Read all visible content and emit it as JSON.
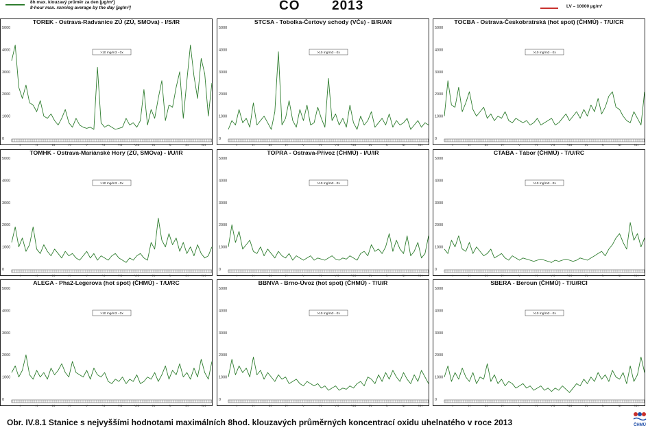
{
  "header": {
    "legend_series_line1": "8h max. klouzavý průměr za den [µg/m³]",
    "legend_series_line2": "8-hour max. running average by the day [µg/m³]",
    "gas": "CO",
    "year": "2013",
    "legend_limit": "LV – 10000 µg/m³",
    "series_color": "#2f7d2f",
    "limit_color": "#c8302c"
  },
  "caption": "Obr. IV.8.1  Stanice s nejvyššími hodnotami maximálních 8hod. klouzavých průměrných koncentrací oxidu uhelnatého v roce 2013",
  "logo_text": "ČHMÚ",
  "chart_data": [
    {
      "type": "line",
      "title": "TOREK - Ostrava-Radvanice ZÚ (ZÚ, SMOva) - I/S/IR",
      "annotation": ">10 mg/m3 - 0x",
      "ylim": [
        0,
        5000
      ],
      "yticks": [
        "0",
        "1000",
        "2000",
        "3000",
        "4000",
        "5000"
      ],
      "xticks": [
        "I",
        "II",
        "III",
        "IV",
        "V",
        "VI",
        "VII",
        "VIII",
        "IX",
        "X",
        "XI",
        "XII"
      ],
      "series": [
        {
          "values": [
            3500,
            4200,
            2300,
            1800,
            2400,
            1600,
            1500,
            1200,
            1700,
            1000,
            900,
            1100,
            800,
            600,
            900,
            1300,
            700,
            500,
            900,
            600,
            500,
            450,
            500,
            400,
            3200,
            700,
            500,
            600,
            500,
            400,
            450,
            500,
            900,
            600,
            700,
            500,
            800,
            2200,
            600,
            1300,
            900,
            1800,
            2600,
            800,
            1500,
            1400,
            2300,
            3000,
            900,
            2600,
            4200,
            2800,
            1800,
            3600,
            2900,
            1000,
            2500
          ]
        }
      ]
    },
    {
      "type": "line",
      "title": "STCSA - Tobolka-Čertovy schody (VČs) - B/R/AN",
      "annotation": ">10 mg/m3 - 0x",
      "ylim": [
        0,
        5000
      ],
      "yticks": [
        "0",
        "1000",
        "2000",
        "3000",
        "4000",
        "5000"
      ],
      "xticks": [
        "I",
        "II",
        "III",
        "IV",
        "V",
        "VI",
        "VII",
        "VIII",
        "IX",
        "X",
        "XI",
        "XII"
      ],
      "series": [
        {
          "values": [
            400,
            800,
            600,
            1300,
            700,
            900,
            500,
            1600,
            600,
            800,
            1000,
            700,
            400,
            1200,
            3900,
            600,
            900,
            1700,
            800,
            500,
            1300,
            800,
            1500,
            600,
            700,
            1400,
            900,
            500,
            2700,
            800,
            1100,
            600,
            900,
            500,
            1500,
            700,
            400,
            1000,
            600,
            800,
            1200,
            500,
            700,
            900,
            600,
            1100,
            500,
            800,
            600,
            700,
            900,
            400,
            600,
            800,
            500,
            700,
            600
          ]
        }
      ]
    },
    {
      "type": "line",
      "title": "TOCBA - Ostrava-Českobratrská (hot spot) (ČHMÚ) - T/U/CR",
      "annotation": ">10 mg/m3 - 0x",
      "ylim": [
        0,
        5000
      ],
      "yticks": [
        "0",
        "1000",
        "2000",
        "3000",
        "4000",
        "5000"
      ],
      "xticks": [
        "I",
        "II",
        "III",
        "IV",
        "V",
        "VI",
        "VII",
        "VIII",
        "IX",
        "X",
        "XI",
        "XII"
      ],
      "series": [
        {
          "values": [
            1000,
            2600,
            1500,
            1400,
            2300,
            1200,
            1600,
            2100,
            1300,
            1000,
            1200,
            1400,
            900,
            1100,
            800,
            1000,
            900,
            1200,
            800,
            700,
            900,
            800,
            700,
            800,
            600,
            700,
            900,
            600,
            700,
            800,
            900,
            600,
            700,
            900,
            1100,
            800,
            1000,
            1200,
            900,
            1300,
            1000,
            1500,
            1200,
            1800,
            1100,
            1400,
            1900,
            2100,
            1400,
            1300,
            1000,
            800,
            700,
            1200,
            900,
            600,
            2100
          ]
        }
      ]
    },
    {
      "type": "line",
      "title": "TOMHK - Ostrava-Mariánské Hory (ZÚ, SMOva) - I/U/IR",
      "annotation": ">10 mg/m3 - 0x",
      "ylim": [
        0,
        5000
      ],
      "yticks": [
        "0",
        "1000",
        "2000",
        "3000",
        "4000",
        "5000"
      ],
      "xticks": [
        "I",
        "II",
        "III",
        "IV",
        "V",
        "VI",
        "VII",
        "VIII",
        "IX",
        "X",
        "XI",
        "XII"
      ],
      "series": [
        {
          "values": [
            1200,
            1900,
            1000,
            1400,
            800,
            1100,
            1900,
            900,
            700,
            1100,
            800,
            600,
            900,
            700,
            500,
            800,
            600,
            700,
            500,
            400,
            600,
            800,
            500,
            700,
            400,
            600,
            500,
            400,
            600,
            700,
            500,
            400,
            300,
            500,
            400,
            600,
            700,
            500,
            400,
            1200,
            900,
            2300,
            1300,
            1000,
            1600,
            1100,
            1400,
            800,
            1200,
            700,
            1000,
            600,
            1100,
            700,
            500,
            600,
            1000
          ]
        }
      ]
    },
    {
      "type": "line",
      "title": "TOPRA - Ostrava-Přívoz (ČHMÚ) - I/U/IR",
      "annotation": ">10 mg/m3 - 0x",
      "ylim": [
        0,
        5000
      ],
      "yticks": [
        "0",
        "1000",
        "2000",
        "3000",
        "4000",
        "5000"
      ],
      "xticks": [
        "I",
        "II",
        "III",
        "IV",
        "V",
        "VI",
        "VII",
        "VIII",
        "IX",
        "X",
        "XI",
        "XII"
      ],
      "series": [
        {
          "values": [
            1000,
            2000,
            1200,
            1700,
            900,
            1100,
            1300,
            800,
            700,
            1000,
            600,
            900,
            700,
            500,
            800,
            600,
            500,
            700,
            400,
            600,
            500,
            400,
            500,
            600,
            400,
            500,
            450,
            400,
            500,
            600,
            450,
            400,
            500,
            450,
            600,
            500,
            400,
            700,
            800,
            600,
            1100,
            800,
            900,
            700,
            1000,
            1600,
            800,
            1300,
            900,
            700,
            1500,
            600,
            800,
            1200,
            500,
            700,
            1500
          ]
        }
      ]
    },
    {
      "type": "line",
      "title": "CTABA - Tábor (ČHMÚ) - T/U/RC",
      "annotation": ">10 mg/m3 - 0x",
      "ylim": [
        0,
        5000
      ],
      "yticks": [
        "0",
        "1000",
        "2000",
        "3000",
        "4000",
        "5000"
      ],
      "xticks": [
        "I",
        "II",
        "III",
        "IV",
        "V",
        "VI",
        "VII",
        "VIII",
        "IX",
        "X",
        "XI",
        "XII"
      ],
      "series": [
        {
          "values": [
            900,
            700,
            1300,
            1000,
            1500,
            900,
            800,
            1200,
            700,
            1000,
            800,
            600,
            700,
            900,
            500,
            600,
            700,
            500,
            400,
            600,
            500,
            400,
            500,
            450,
            400,
            350,
            400,
            450,
            400,
            350,
            300,
            400,
            350,
            400,
            450,
            400,
            350,
            400,
            500,
            450,
            400,
            500,
            600,
            700,
            800,
            600,
            900,
            1100,
            1400,
            1600,
            1200,
            900,
            2100,
            1300,
            1600,
            1000,
            1400
          ]
        }
      ]
    },
    {
      "type": "line",
      "title": "ALEGA - Pha2-Legerova (hot spot) (ČHMÚ) - T/U/RC",
      "annotation": ">10 mg/m3 - 0x",
      "ylim": [
        0,
        5000
      ],
      "yticks": [
        "0",
        "1000",
        "2000",
        "3000",
        "4000",
        "5000"
      ],
      "xticks": [
        "I",
        "II",
        "III",
        "IV",
        "V",
        "VI",
        "VII",
        "VIII",
        "IX",
        "X",
        "XI",
        "XII"
      ],
      "series": [
        {
          "values": [
            1200,
            1500,
            1000,
            1300,
            2000,
            1100,
            900,
            1300,
            1000,
            1200,
            900,
            1400,
            1100,
            1300,
            1600,
            1200,
            1000,
            1700,
            1200,
            1100,
            1000,
            1300,
            900,
            1400,
            1100,
            1000,
            1200,
            800,
            700,
            900,
            800,
            1000,
            700,
            900,
            800,
            1100,
            700,
            800,
            1000,
            900,
            1200,
            800,
            1100,
            1500,
            900,
            1300,
            1100,
            1600,
            1000,
            1200,
            900,
            1400,
            1000,
            1800,
            1200,
            900,
            1700
          ]
        }
      ]
    },
    {
      "type": "line",
      "title": "BBNVA - Brno-Úvoz (hot spot) (ČHMÚ) - T/U/R",
      "annotation": ">10 mg/m3 - 0x",
      "ylim": [
        0,
        5000
      ],
      "yticks": [
        "0",
        "1000",
        "2000",
        "3000",
        "4000",
        "5000"
      ],
      "xticks": [
        "I",
        "II",
        "III",
        "IV",
        "V",
        "VI",
        "VII",
        "VIII",
        "IX",
        "X",
        "XI",
        "XII"
      ],
      "series": [
        {
          "values": [
            1000,
            1800,
            1100,
            1500,
            1200,
            1400,
            1000,
            1900,
            1100,
            1300,
            900,
            1200,
            1000,
            800,
            1100,
            900,
            1000,
            700,
            800,
            900,
            700,
            600,
            800,
            700,
            600,
            700,
            500,
            600,
            400,
            500,
            600,
            400,
            500,
            450,
            600,
            500,
            700,
            800,
            600,
            1000,
            900,
            700,
            1100,
            800,
            1200,
            900,
            1300,
            1000,
            800,
            1200,
            900,
            700,
            1100,
            800,
            1300,
            1000,
            700
          ]
        }
      ]
    },
    {
      "type": "line",
      "title": "SBERA - Beroun (ČHMÚ) - T/U/RCI",
      "annotation": ">10 mg/m3 - 0x",
      "ylim": [
        0,
        5000
      ],
      "yticks": [
        "0",
        "1000",
        "2000",
        "3000",
        "4000",
        "5000"
      ],
      "xticks": [
        "I",
        "II",
        "III",
        "IV",
        "V",
        "VI",
        "VII",
        "VIII",
        "IX",
        "X",
        "XI",
        "XII"
      ],
      "series": [
        {
          "values": [
            1000,
            1500,
            800,
            1200,
            900,
            1400,
            1000,
            800,
            1200,
            700,
            1000,
            900,
            1600,
            800,
            1100,
            700,
            900,
            600,
            800,
            700,
            500,
            600,
            700,
            500,
            600,
            400,
            500,
            600,
            400,
            500,
            350,
            500,
            400,
            600,
            450,
            300,
            500,
            700,
            600,
            900,
            700,
            1000,
            800,
            1200,
            900,
            1100,
            800,
            1300,
            1000,
            900,
            1200,
            700,
            1500,
            800,
            1100,
            1900,
            1200
          ]
        }
      ]
    }
  ]
}
